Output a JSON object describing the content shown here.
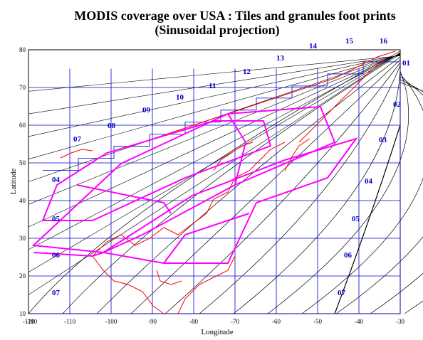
{
  "title_line1": "MODIS coverage over USA : Tiles and granules foot prints",
  "title_line2": "(Sinusoidal projection)",
  "x_axis_label": "Longitude",
  "y_axis_label": "Latitude",
  "x_ticks": [
    "-110",
    "-100",
    "-90",
    "-80",
    "-70",
    "-60",
    "-50",
    "-40",
    "-30"
  ],
  "x_ticks_left": [
    "-120",
    "-110"
  ],
  "y_ticks": [
    "10",
    "20",
    "30",
    "40",
    "50",
    "60",
    "70",
    "80"
  ],
  "tile_top_labels": [
    "07",
    "08",
    "09",
    "10",
    "11",
    "12",
    "13",
    "14",
    "15",
    "16"
  ],
  "tile_right_labels": [
    "01",
    "02",
    "03",
    "04",
    "05",
    "06",
    "07"
  ],
  "tile_left_labels": [
    "04",
    "05",
    "06",
    "07"
  ],
  "colors": {
    "grid": "#0000cc",
    "projection_lines": "#000000",
    "coastline": "#ff0000",
    "granule": "#ff00ff"
  }
}
